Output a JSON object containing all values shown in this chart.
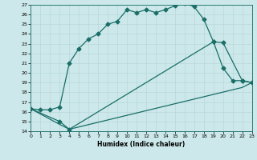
{
  "xlabel": "Humidex (Indice chaleur)",
  "bg_color": "#cce8ea",
  "line_color": "#1a6e68",
  "grid_color": "#b8d8da",
  "xmin": 0,
  "xmax": 23,
  "ymin": 14,
  "ymax": 27,
  "line1_x": [
    0,
    1,
    2,
    3,
    4,
    5,
    6,
    7,
    8,
    9,
    10,
    11,
    12,
    13,
    14,
    15,
    16,
    17,
    18,
    19,
    20,
    21,
    22,
    23
  ],
  "line1_y": [
    16.3,
    16.2,
    16.2,
    16.5,
    21.0,
    22.5,
    23.5,
    24.0,
    25.0,
    25.3,
    26.5,
    26.2,
    26.5,
    26.2,
    26.5,
    26.9,
    27.2,
    26.8,
    25.5,
    23.2,
    20.5,
    19.2,
    19.2,
    19.0
  ],
  "line2_x": [
    0,
    3,
    4,
    19,
    20,
    22,
    23
  ],
  "line2_y": [
    16.3,
    15.0,
    14.2,
    23.2,
    23.1,
    19.2,
    19.0
  ],
  "line3_x": [
    0,
    3,
    4,
    22,
    23
  ],
  "line3_y": [
    16.3,
    14.7,
    14.2,
    18.5,
    19.0
  ],
  "marker": "D",
  "markersize": 2.5,
  "linewidth": 0.9
}
